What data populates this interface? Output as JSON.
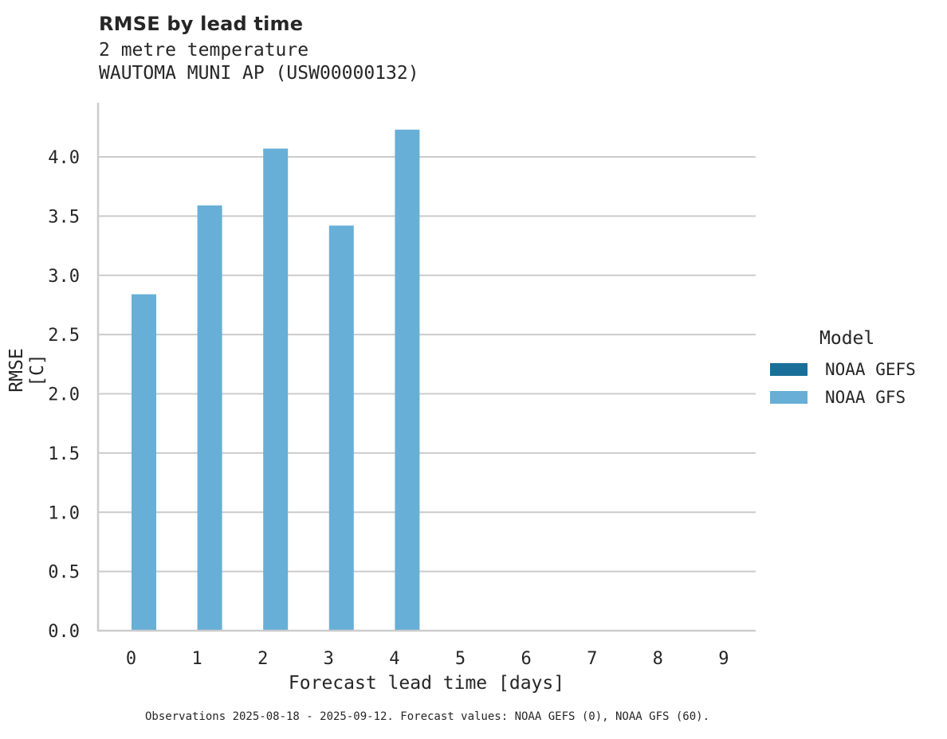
{
  "header": {
    "title": "RMSE by lead time",
    "subtitle_line1": "2 metre temperature",
    "subtitle_line2": "WAUTOMA MUNI AP (USW00000132)"
  },
  "axes": {
    "xlabel": "Forecast lead time [days]",
    "ylabel": "RMSE [C]"
  },
  "legend": {
    "title": "Model",
    "items": [
      {
        "label": "NOAA GEFS",
        "color": "#1a6e9a"
      },
      {
        "label": "NOAA GFS",
        "color": "#67afd7"
      }
    ]
  },
  "footer": "Observations 2025-08-18 - 2025-09-12. Forecast values: NOAA GEFS (0), NOAA GFS (60).",
  "chart_data": {
    "type": "bar",
    "title": "RMSE by lead time",
    "subtitle": "2 metre temperature / WAUTOMA MUNI AP (USW00000132)",
    "xlabel": "Forecast lead time [days]",
    "ylabel": "RMSE [C]",
    "categories": [
      "0",
      "1",
      "2",
      "3",
      "4",
      "5",
      "6",
      "7",
      "8",
      "9"
    ],
    "series": [
      {
        "name": "NOAA GEFS",
        "color": "#1a6e9a",
        "values": [
          null,
          null,
          null,
          null,
          null,
          null,
          null,
          null,
          null,
          null
        ]
      },
      {
        "name": "NOAA GFS",
        "color": "#67afd7",
        "values": [
          2.84,
          3.59,
          4.07,
          3.42,
          4.23,
          null,
          null,
          null,
          null,
          null
        ]
      }
    ],
    "yticks": [
      0.0,
      0.5,
      1.0,
      1.5,
      2.0,
      2.5,
      3.0,
      3.5,
      4.0
    ],
    "ytick_labels": [
      "0.0",
      "0.5",
      "1.0",
      "1.5",
      "2.0",
      "2.5",
      "3.0",
      "3.5",
      "4.0"
    ],
    "ylim": [
      0,
      4.46
    ],
    "grid": "horizontal",
    "legend_position": "right"
  }
}
